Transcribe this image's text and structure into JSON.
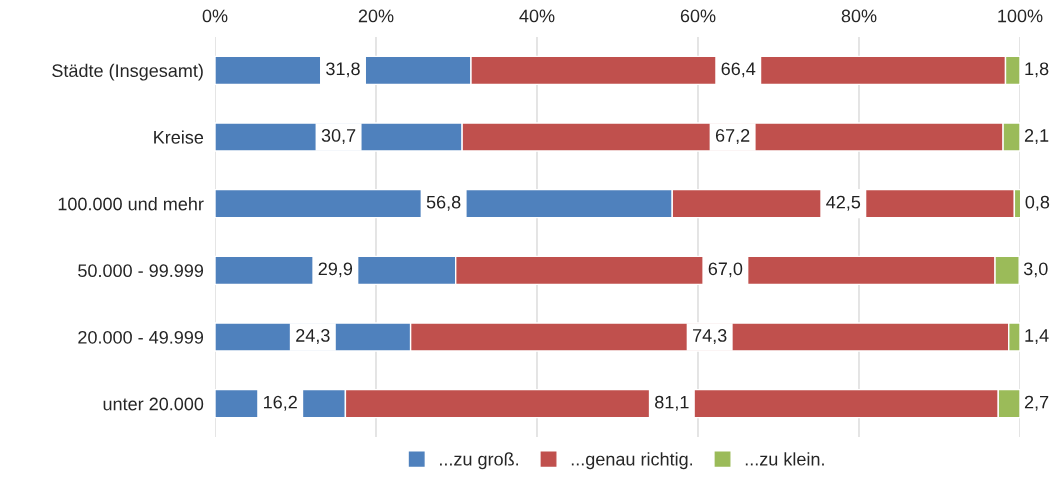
{
  "chart_data": {
    "type": "bar",
    "orientation": "horizontal",
    "stacked": true,
    "categories": [
      "Städte (Insgesamt)",
      "Kreise",
      "100.000 und mehr",
      "50.000 - 99.999",
      "20.000 - 49.999",
      "unter 20.000"
    ],
    "series": [
      {
        "name": "...zu groß.",
        "color": "#4f81bd",
        "values": [
          31.8,
          30.7,
          56.8,
          29.9,
          24.3,
          16.2
        ],
        "value_labels": [
          "31,8",
          "30,7",
          "56,8",
          "29,9",
          "24,3",
          "16,2"
        ]
      },
      {
        "name": "...genau richtig.",
        "color": "#c0504d",
        "values": [
          66.4,
          67.2,
          42.5,
          67.0,
          74.3,
          81.1
        ],
        "value_labels": [
          "66,4",
          "67,2",
          "42,5",
          "67,0",
          "74,3",
          "81,1"
        ]
      },
      {
        "name": "...zu klein.",
        "color": "#9bbb59",
        "values": [
          1.8,
          2.1,
          0.8,
          3.0,
          1.4,
          2.7
        ],
        "value_labels": [
          "1,8",
          "2,1",
          "0,8",
          "3,0",
          "1,4",
          "2,7"
        ]
      }
    ],
    "xlim": [
      0,
      100
    ],
    "xticks": [
      {
        "value": 0,
        "label": "0%"
      },
      {
        "value": 20,
        "label": "20%"
      },
      {
        "value": 40,
        "label": "40%"
      },
      {
        "value": 60,
        "label": "60%"
      },
      {
        "value": 80,
        "label": "80%"
      },
      {
        "value": 100,
        "label": "100%"
      }
    ],
    "grid": "x",
    "legend": "bottom"
  }
}
